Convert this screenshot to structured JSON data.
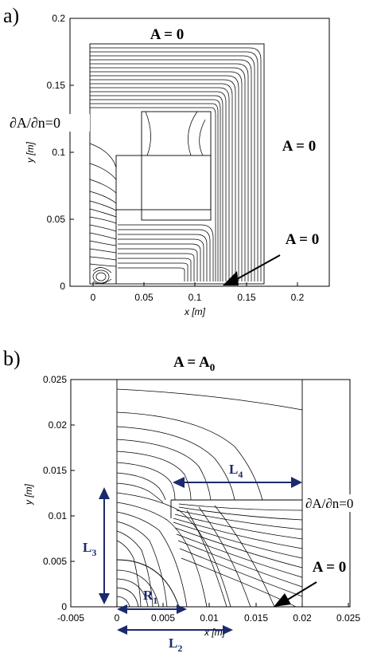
{
  "panel_a": {
    "label": "a)",
    "bc_top": "A = 0",
    "bc_left": "∂A/∂n=0",
    "bc_right": "A = 0",
    "bc_bottom": "A = 0",
    "xlabel": "x [m]",
    "ylabel": "y [m]",
    "xticks": [
      "0",
      "0.05",
      "0.1",
      "0.15",
      "0.2"
    ],
    "yticks": [
      "0",
      "0.05",
      "0.1",
      "0.15",
      "0.2"
    ]
  },
  "panel_b": {
    "label": "b)",
    "bc_top": "A = A",
    "bc_top_sub": "0",
    "bc_right": "∂A/∂n=0",
    "bc_bottom": "A = 0",
    "xlabel": "x [m]",
    "ylabel": "y [m]",
    "xticks": [
      "-0.005",
      "0",
      "0.005",
      "0.01",
      "0.015",
      "0.02",
      "0.025"
    ],
    "yticks": [
      "0",
      "0.005",
      "0.01",
      "0.015",
      "0.02",
      "0.025"
    ],
    "dimensions": {
      "L1": {
        "main": "R",
        "sub": "1"
      },
      "L2": {
        "main": "L",
        "sub": "2"
      },
      "L3": {
        "main": "L",
        "sub": "3"
      },
      "L4": {
        "main": "L",
        "sub": "4"
      }
    },
    "dim_color": "#1a2a6c"
  }
}
